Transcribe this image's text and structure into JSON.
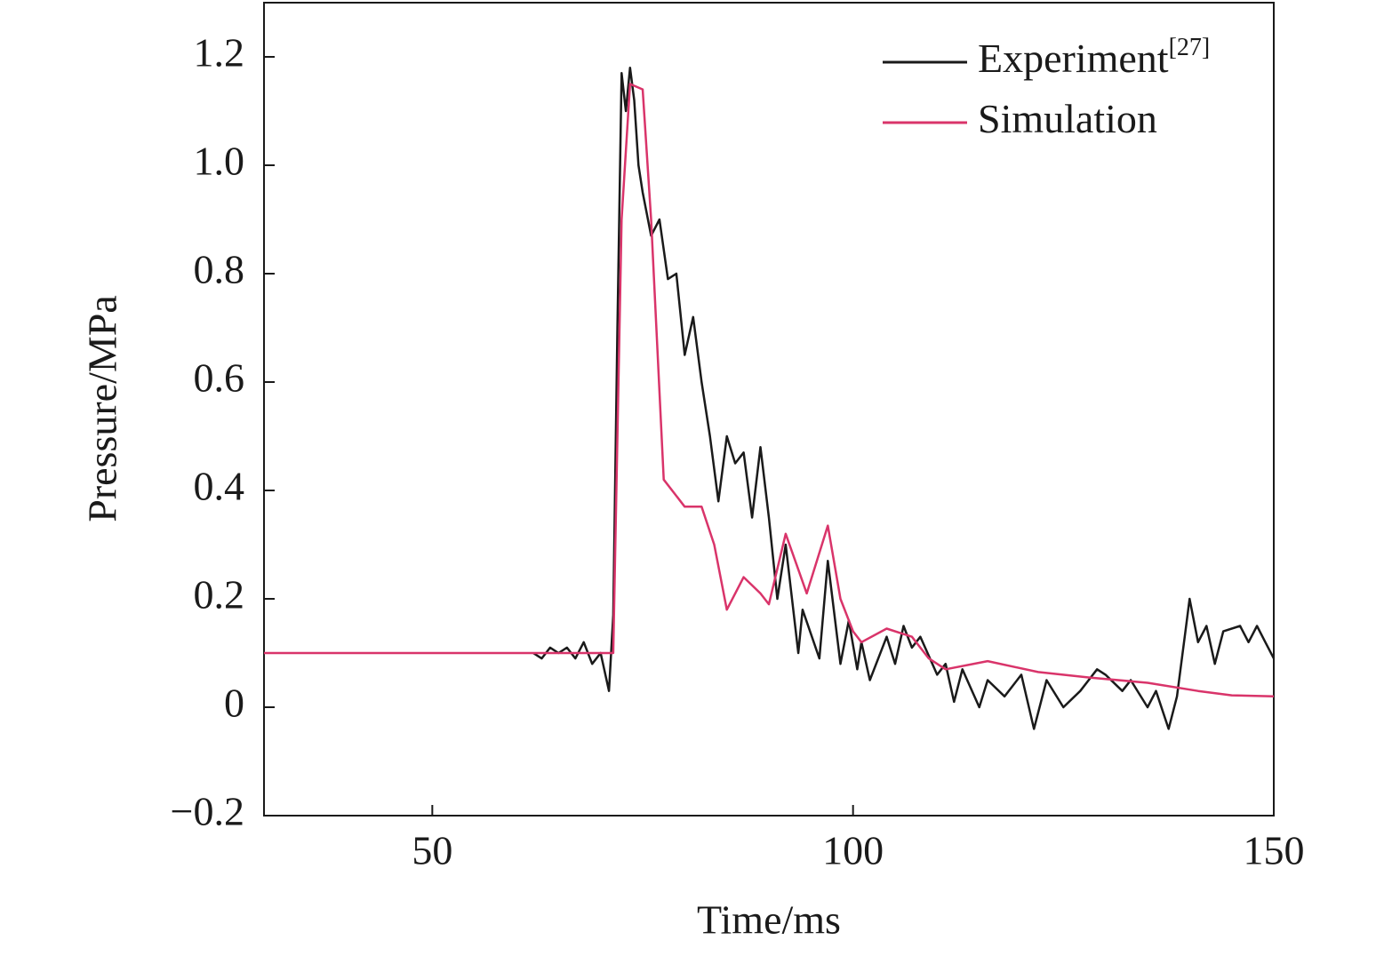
{
  "chart_data": {
    "type": "line",
    "xlabel": "Time/ms",
    "ylabel": "Pressure/MPa",
    "xlim": [
      30,
      150
    ],
    "xticks": [
      50,
      100,
      150
    ],
    "ylim": [
      -0.2,
      1.3
    ],
    "yticks": [
      {
        "value": -0.2,
        "label": "−0.2"
      },
      0,
      0.2,
      0.4,
      0.6,
      0.8,
      {
        "value": 1.0,
        "label": "1.0"
      },
      1.2
    ],
    "legend": "upper right",
    "series": [
      {
        "name": "Experiment",
        "citation": "[27]",
        "color": "#1a1a1a",
        "x": [
          62,
          63,
          64,
          65,
          66,
          67,
          68,
          69,
          70,
          71,
          71.5,
          72,
          72.5,
          73,
          73.5,
          74,
          74.5,
          75,
          76,
          77,
          78,
          79,
          80,
          81,
          82,
          83,
          84,
          85,
          86,
          87,
          88,
          89,
          90,
          91,
          92,
          93.5,
          94,
          96,
          97,
          98.5,
          99.5,
          100.5,
          101,
          102,
          104,
          105,
          106,
          107,
          108,
          110,
          111,
          112,
          113,
          115,
          116,
          118,
          120,
          121.5,
          123,
          125,
          127,
          129,
          130,
          132,
          133,
          135,
          136,
          137.5,
          138.5,
          139.5,
          140,
          141,
          142,
          143,
          144,
          146,
          147,
          148,
          149,
          150
        ],
        "values": [
          0.1,
          0.09,
          0.11,
          0.1,
          0.11,
          0.09,
          0.12,
          0.08,
          0.1,
          0.03,
          0.17,
          0.7,
          1.17,
          1.1,
          1.18,
          1.12,
          1.0,
          0.95,
          0.87,
          0.9,
          0.79,
          0.8,
          0.65,
          0.72,
          0.6,
          0.5,
          0.38,
          0.5,
          0.45,
          0.47,
          0.35,
          0.48,
          0.35,
          0.2,
          0.3,
          0.1,
          0.18,
          0.09,
          0.27,
          0.08,
          0.16,
          0.07,
          0.12,
          0.05,
          0.13,
          0.08,
          0.15,
          0.11,
          0.13,
          0.06,
          0.08,
          0.01,
          0.07,
          0.0,
          0.05,
          0.02,
          0.06,
          -0.04,
          0.05,
          0.0,
          0.03,
          0.07,
          0.06,
          0.03,
          0.05,
          0.0,
          0.03,
          -0.04,
          0.02,
          0.14,
          0.2,
          0.12,
          0.15,
          0.08,
          0.14,
          0.15,
          0.12,
          0.15,
          0.12,
          0.09
        ]
      },
      {
        "name": "Simulation",
        "color": "#d9346a",
        "x": [
          30,
          71.5,
          72.5,
          73.5,
          75,
          76,
          77.5,
          80,
          82,
          83.5,
          85,
          87,
          89,
          90,
          92,
          94.5,
          97,
          98.5,
          100,
          101,
          104,
          107,
          109,
          111,
          116,
          122,
          128,
          135,
          141,
          145,
          150
        ],
        "values": [
          0.1,
          0.1,
          0.9,
          1.15,
          1.14,
          0.9,
          0.42,
          0.37,
          0.37,
          0.3,
          0.18,
          0.24,
          0.21,
          0.19,
          0.32,
          0.21,
          0.335,
          0.2,
          0.14,
          0.12,
          0.145,
          0.13,
          0.09,
          0.07,
          0.085,
          0.065,
          0.055,
          0.045,
          0.03,
          0.022,
          0.02
        ]
      }
    ]
  }
}
